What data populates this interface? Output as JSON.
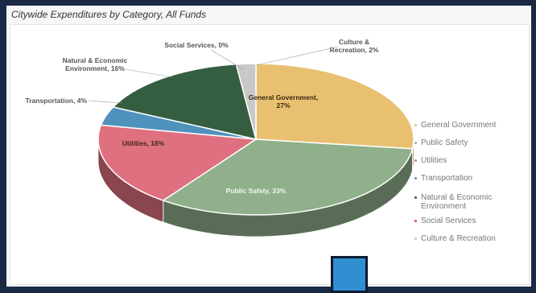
{
  "panel": {
    "title": "Citywide Expenditures by Category, All Funds"
  },
  "colors": {
    "General Government": "#e8c070",
    "Public Safety": "#8fb08a",
    "Utilities": "#de7080",
    "Transportation": "#4f92bd",
    "Natural & Economic Environment": "#355d3f",
    "Social Services": "#e84050",
    "Culture & Recreation": "#c8c8c8"
  },
  "chart_data": {
    "type": "pie",
    "title": "",
    "slices": [
      {
        "name": "General Government",
        "value": 27,
        "label": "General Government, 27%"
      },
      {
        "name": "Public Safety",
        "value": 33,
        "label": "Public Safety, 33%"
      },
      {
        "name": "Utilities",
        "value": 18,
        "label": "Utilities, 18%"
      },
      {
        "name": "Transportation",
        "value": 4,
        "label": "Transportation, 4%"
      },
      {
        "name": "Natural & Economic Environment",
        "value": 16,
        "label": "Natural & Economic Environment, 16%"
      },
      {
        "name": "Social Services",
        "value": 0,
        "label": "Social Services, 0%"
      },
      {
        "name": "Culture & Recreation",
        "value": 2,
        "label": "Culture & Recreation, 2%"
      }
    ],
    "legend": [
      "General Government",
      "Public Safety",
      "Utilities",
      "Transportation",
      "Natural & Economic Environment",
      "Social Services",
      "Culture & Recreation"
    ],
    "legend_position": "right"
  }
}
